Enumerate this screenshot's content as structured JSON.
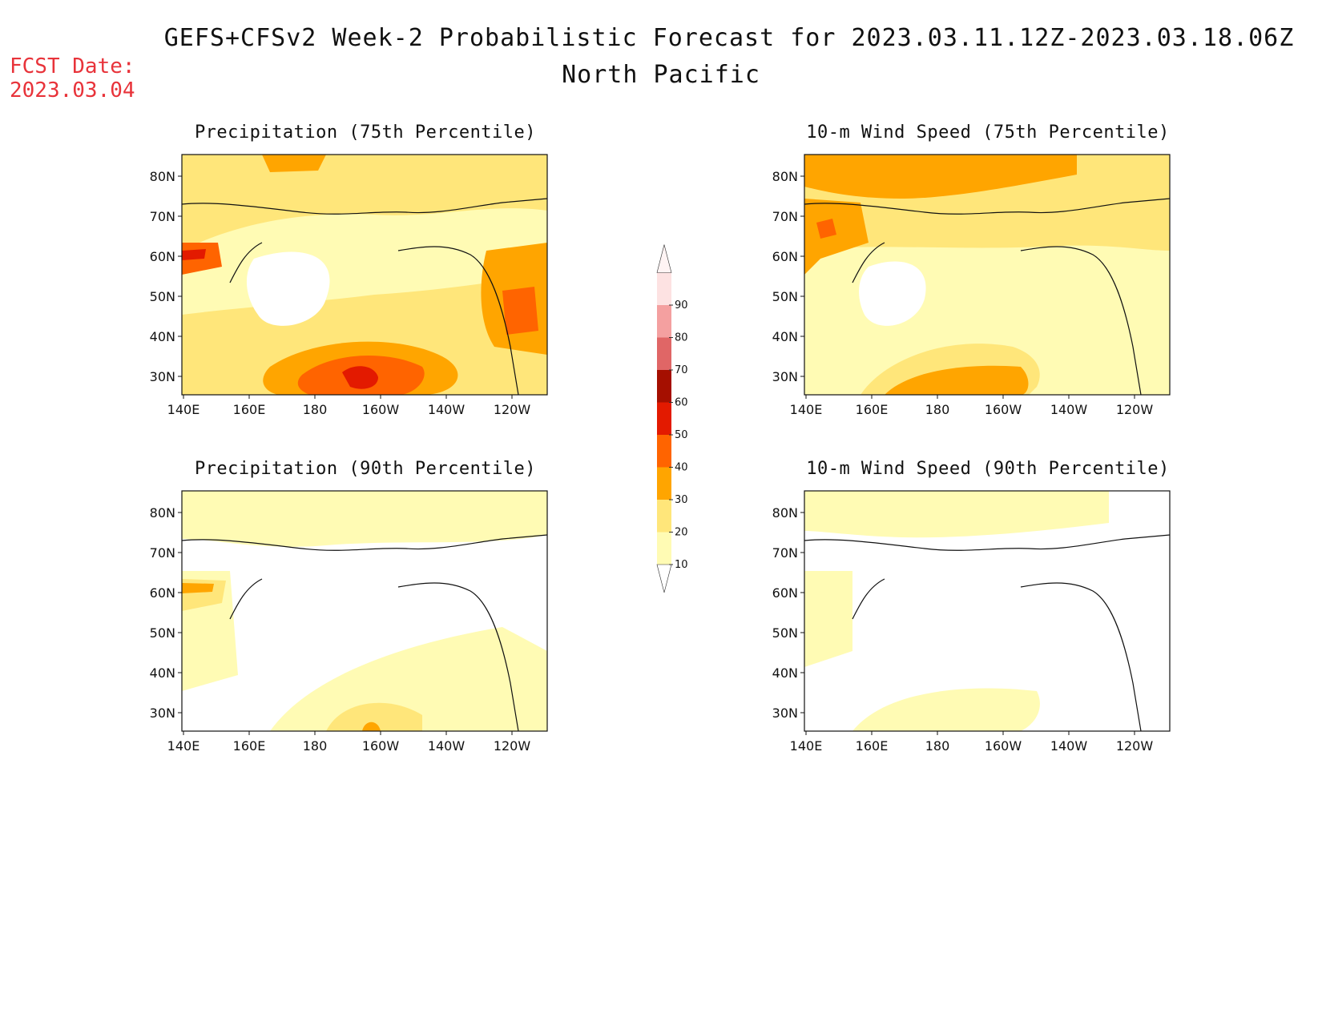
{
  "header": {
    "title": "GEFS+CFSv2 Week-2 Probabilistic Forecast for 2023.03.11.12Z-2023.03.18.06Z",
    "subtitle": "North Pacific",
    "fcst_label": "FCST Date:",
    "fcst_date": "2023.03.04"
  },
  "panels": [
    {
      "id": "precip75",
      "title": "Precipitation (75th Percentile)"
    },
    {
      "id": "wind75",
      "title": "10-m Wind Speed (75th Percentile)"
    },
    {
      "id": "precip90",
      "title": "Precipitation (90th Percentile)"
    },
    {
      "id": "wind90",
      "title": "10-m Wind Speed (90th Percentile)"
    }
  ],
  "axes": {
    "lon_ticks": [
      "140E",
      "160E",
      "180",
      "160W",
      "140W",
      "120W"
    ],
    "lat_ticks": [
      "80N",
      "70N",
      "60N",
      "50N",
      "40N",
      "30N"
    ]
  },
  "colorbar": {
    "levels": [
      10,
      20,
      30,
      40,
      50,
      60,
      70,
      80,
      90
    ],
    "colors": [
      "#fffbb4",
      "#ffe67a",
      "#ffa500",
      "#ff6400",
      "#e31a00",
      "#a50f00",
      "#e06666",
      "#f4a0a0",
      "#fde2e2"
    ]
  }
}
